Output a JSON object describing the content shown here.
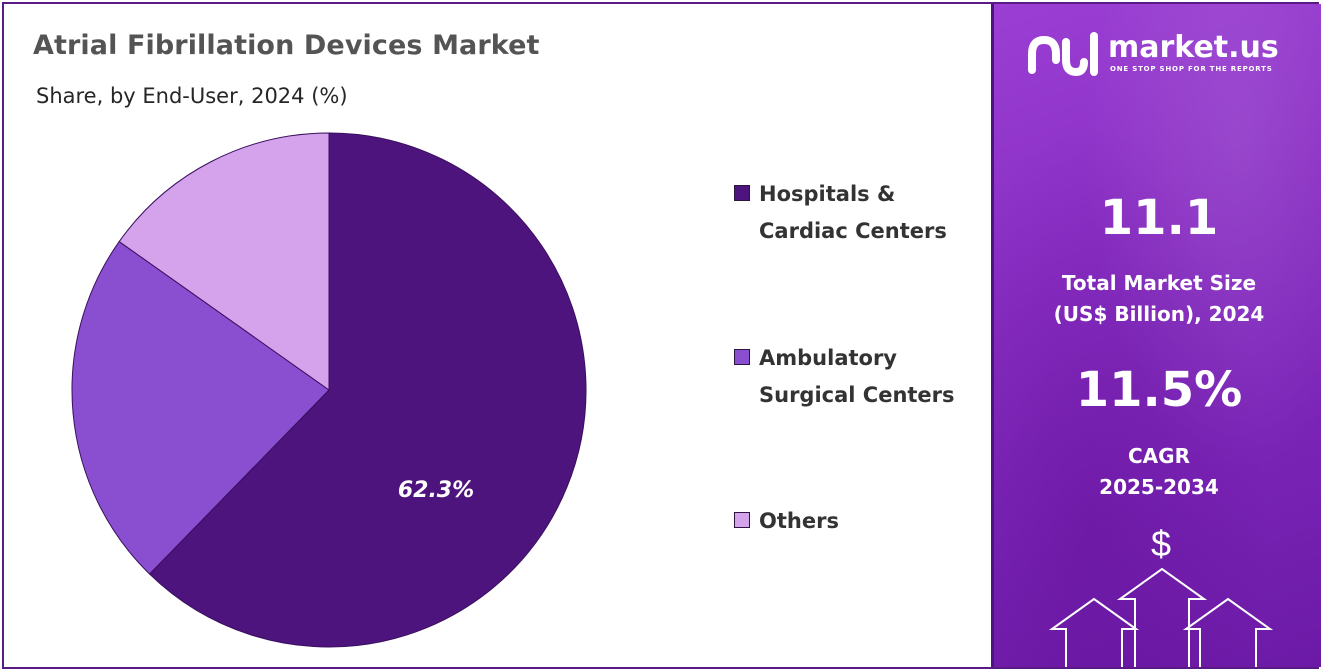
{
  "title": "Atrial Fibrillation Devices Market",
  "subtitle": "Share, by End-User, 2024 (%)",
  "chart_data": {
    "type": "pie",
    "title": "Atrial Fibrillation Devices Market",
    "subtitle": "Share, by End-User, 2024 (%)",
    "categories": [
      "Hospitals & Cardiac Centers",
      "Ambulatory Surgical Centers",
      "Others"
    ],
    "values": [
      62.3,
      22.5,
      15.2
    ],
    "colors": [
      "#4e147e",
      "#8a4fd0",
      "#d4a3ec"
    ],
    "labels": [
      {
        "category": "Hospitals & Cardiac Centers",
        "text": "62.3%"
      }
    ],
    "legend_placement": "right"
  },
  "legend": [
    {
      "line1": "Hospitals &",
      "line2": "Cardiac Centers"
    },
    {
      "line1": "Ambulatory",
      "line2": "Surgical Centers"
    },
    {
      "line1": "Others",
      "line2": ""
    }
  ],
  "sidebar": {
    "brand_name": "market.us",
    "brand_tagline": "ONE STOP SHOP FOR THE REPORTS",
    "market_size_value": "11.1",
    "market_size_label_line1": "Total Market Size",
    "market_size_label_line2": "(US$ Billion), 2024",
    "cagr_value": "11.5%",
    "cagr_label_line1": "CAGR",
    "cagr_label_line2": "2025-2034",
    "currency_symbol": "$"
  },
  "colors": {
    "frame": "#5a1a86",
    "sidebar_gradient_start": "#9b3fd4",
    "sidebar_gradient_end": "#6b1aa6"
  }
}
